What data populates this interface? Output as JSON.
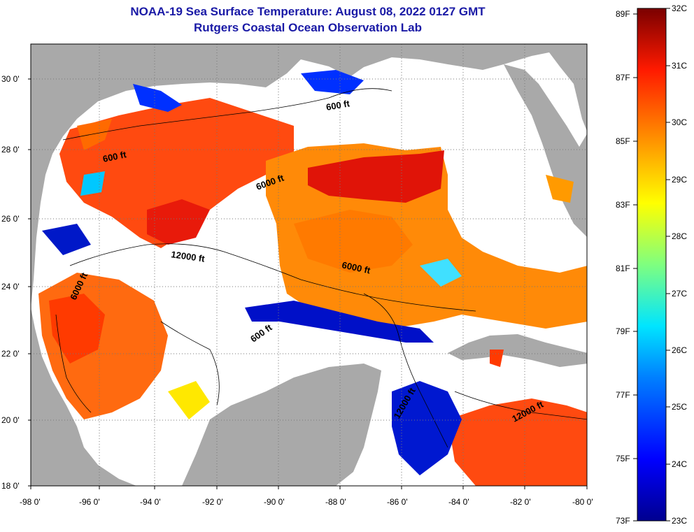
{
  "title": {
    "line1": "NOAA-19 Sea Surface Temperature:  August 08, 2022 0127 GMT",
    "line2": "Rutgers Coastal Ocean Observation Lab"
  },
  "map": {
    "lat_ticks": [
      "30 0'",
      "28 0'",
      "26 0'",
      "24 0'",
      "22 0'",
      "20 0'",
      "18 0'"
    ],
    "lon_ticks": [
      "-98 0'",
      "-96 0'",
      "-94 0'",
      "-92 0'",
      "-90 0'",
      "-88 0'",
      "-86 0'",
      "-84 0'",
      "-82 0'",
      "-80 0'"
    ],
    "contour_labels": [
      "600 ft",
      "600 ft",
      "6000 ft",
      "12000 ft",
      "6000 ft",
      "6000 ft",
      "600 ft",
      "12000 ft",
      "12000 ft"
    ]
  },
  "colorbar": {
    "f_labels": [
      "89F",
      "87F",
      "85F",
      "83F",
      "81F",
      "79F",
      "77F",
      "75F",
      "73F"
    ],
    "c_labels": [
      "32C",
      "31C",
      "30C",
      "29C",
      "28C",
      "27C",
      "26C",
      "25C",
      "24C",
      "23C"
    ]
  },
  "colors": {
    "land": "#a9a9a9",
    "cloud": "#ffffff",
    "title": "#1a1aa6"
  }
}
